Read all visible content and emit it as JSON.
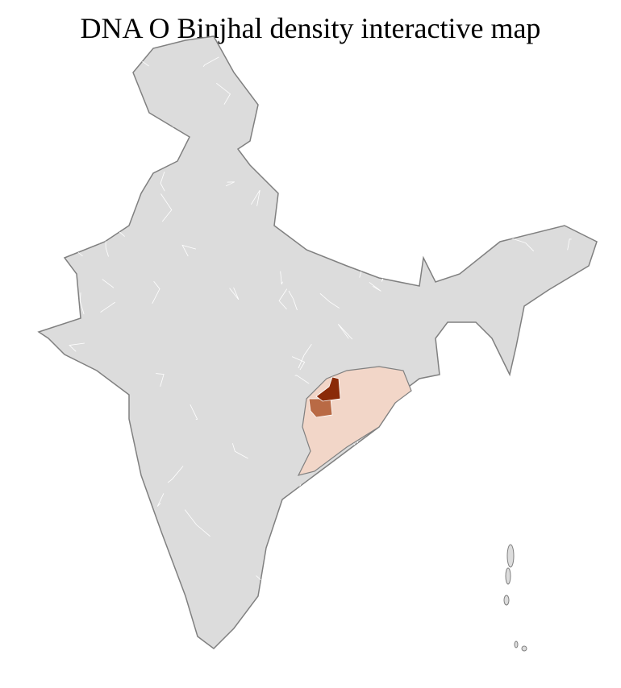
{
  "title": "DNA O Binjhal density interactive map",
  "map": {
    "region": "India districts",
    "colors": {
      "base": "#dcdcdc",
      "border": "#808080",
      "district_border": "#ffffff",
      "low": "#f2d6c8",
      "medium": "#b96a45",
      "high": "#8a2a08"
    }
  }
}
